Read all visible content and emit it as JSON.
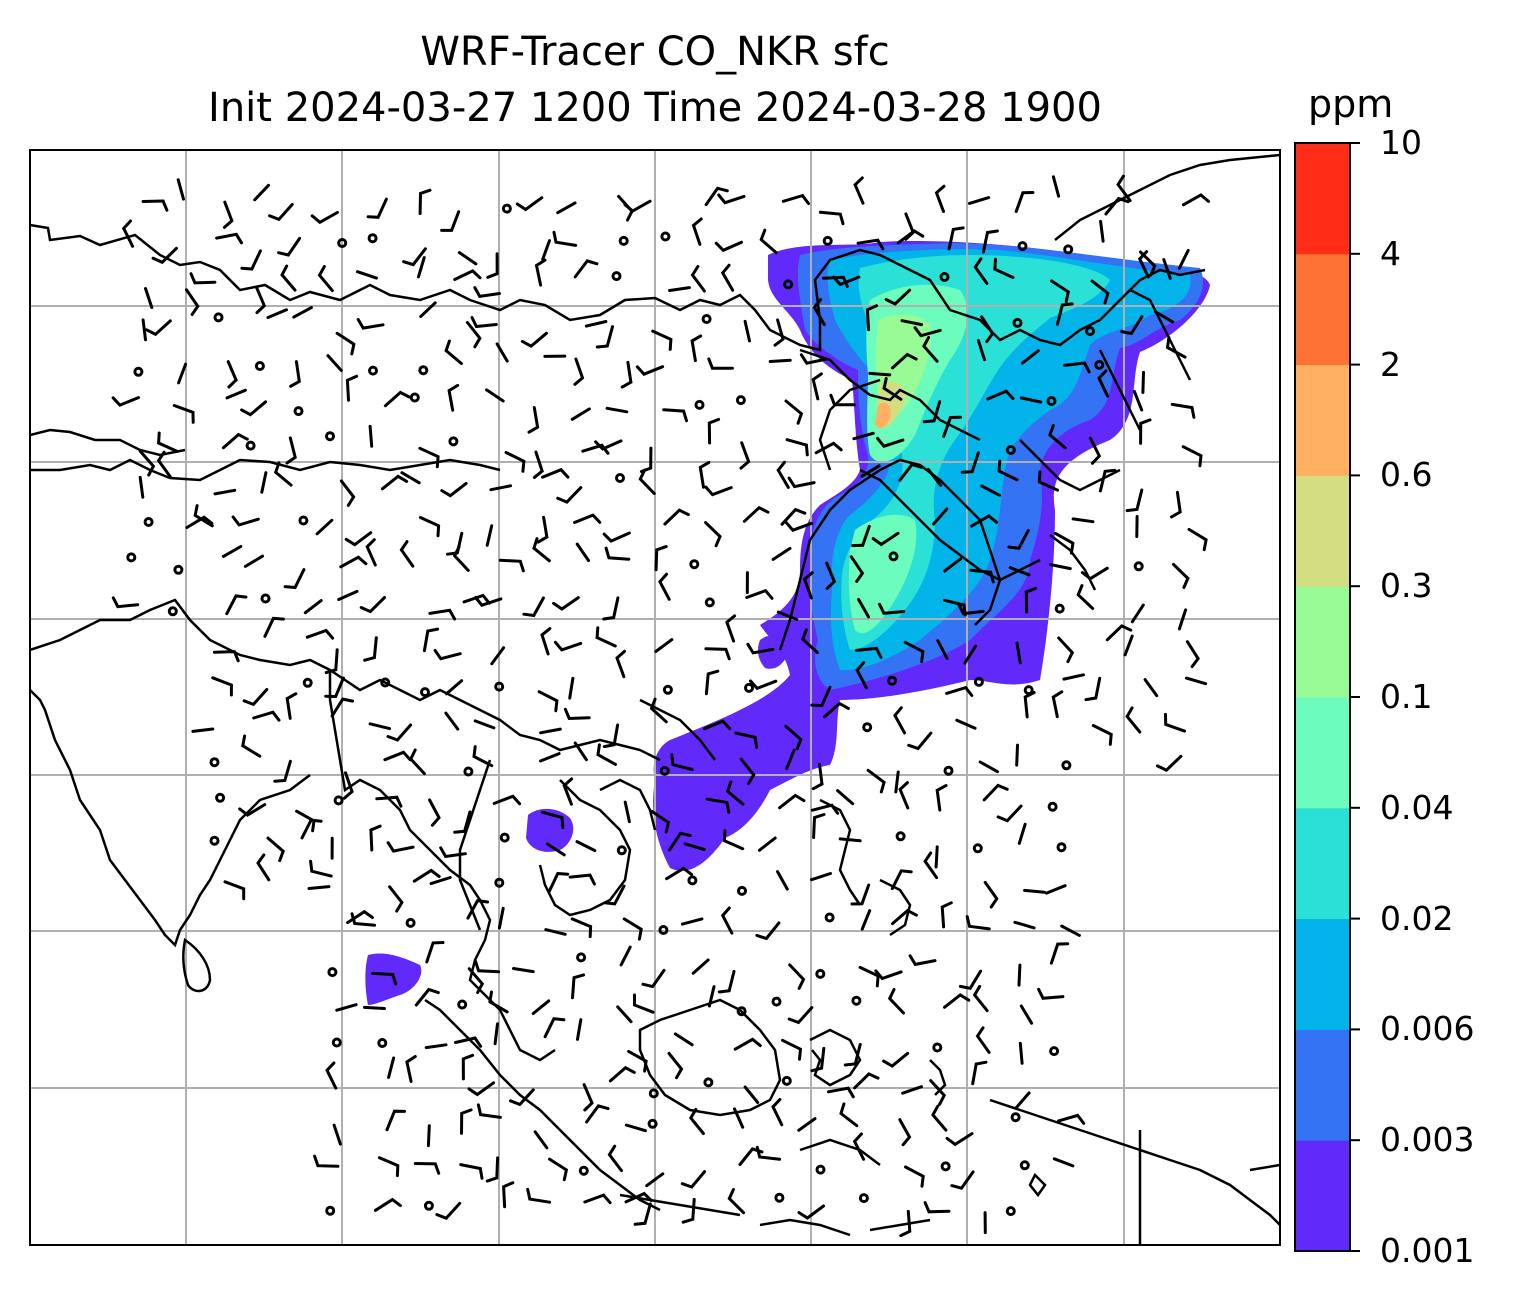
{
  "title": {
    "line1": "WRF-Tracer CO_NKR sfc",
    "line2": "Init 2024-03-27 1200 Time 2024-03-28 1900"
  },
  "colorbar": {
    "unit": "ppm",
    "levels": [
      "0.001",
      "0.003",
      "0.006",
      "0.02",
      "0.04",
      "0.1",
      "0.3",
      "0.6",
      "2",
      "4",
      "10"
    ],
    "colors": [
      "#6129fa",
      "#3473f3",
      "#02b4ea",
      "#2be0d7",
      "#6cfcbd",
      "#98fb95",
      "#d3de83",
      "#ffb061",
      "#ff7236",
      "#ff2c18"
    ]
  },
  "map": {
    "field": "CO_NKR tracer concentration (surface) with wind barbs",
    "gridlines": true,
    "coastline_color": "#000000",
    "grid_color": "#b0b0b0"
  }
}
